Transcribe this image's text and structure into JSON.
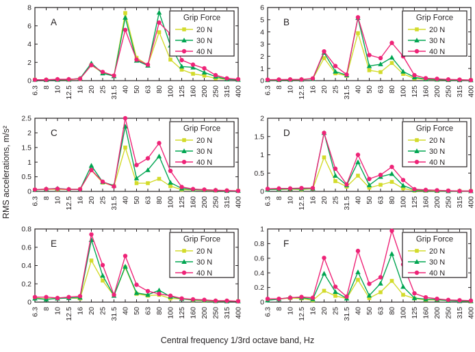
{
  "figure": {
    "xlabel": "Central frequency 1/3rd octave band, Hz",
    "ylabel": "RMS accelerations, m/s²"
  },
  "legend": {
    "title": "Grip Force",
    "position": "top-right",
    "entries": [
      {
        "label": "20 N",
        "color": "#d3db2b",
        "marker": "square"
      },
      {
        "label": "30 N",
        "color": "#00a551",
        "marker": "triangle"
      },
      {
        "label": "40 N",
        "color": "#ee2377",
        "marker": "circle"
      }
    ]
  },
  "chart_data": [
    {
      "type": "line",
      "label": "A",
      "grid": false,
      "categories": [
        "6.3",
        "8",
        "10",
        "12.5",
        "16",
        "20",
        "25",
        "31.5",
        "40",
        "50",
        "63",
        "80",
        "100",
        "125",
        "160",
        "200",
        "250",
        "315",
        "400"
      ],
      "ylim": [
        0,
        8
      ],
      "yticks": [
        0,
        2,
        4,
        6,
        8
      ],
      "series": [
        {
          "name": "20 N",
          "values": [
            0.1,
            0.08,
            0.1,
            0.1,
            0.2,
            1.7,
            0.85,
            0.5,
            7.4,
            2.5,
            1.7,
            5.3,
            2.3,
            1.2,
            0.75,
            0.55,
            0.25,
            0.15,
            0.1
          ]
        },
        {
          "name": "30 N",
          "values": [
            0.1,
            0.08,
            0.1,
            0.12,
            0.25,
            1.9,
            0.8,
            0.5,
            6.9,
            2.2,
            1.65,
            7.45,
            3.85,
            1.55,
            1.45,
            0.9,
            0.45,
            0.15,
            0.1
          ]
        },
        {
          "name": "40 N",
          "values": [
            0.1,
            0.1,
            0.15,
            0.15,
            0.2,
            1.7,
            0.95,
            0.55,
            5.55,
            2.3,
            1.75,
            6.35,
            5.1,
            2.25,
            1.75,
            1.35,
            0.6,
            0.25,
            0.15
          ]
        }
      ]
    },
    {
      "type": "line",
      "label": "B",
      "grid": false,
      "categories": [
        "6.3",
        "8",
        "10",
        "12.5",
        "16",
        "20",
        "25",
        "31.5",
        "40",
        "50",
        "63",
        "80",
        "100",
        "125",
        "160",
        "200",
        "250",
        "315",
        "400"
      ],
      "ylim": [
        0,
        6
      ],
      "yticks": [
        0,
        1,
        2,
        3,
        4,
        5,
        6
      ],
      "series": [
        {
          "name": "20 N",
          "values": [
            0.05,
            0.05,
            0.07,
            0.08,
            0.15,
            1.85,
            0.6,
            0.4,
            3.9,
            0.85,
            0.7,
            1.45,
            0.55,
            0.18,
            0.1,
            0.08,
            0.05,
            0.05,
            0.04
          ]
        },
        {
          "name": "30 N",
          "values": [
            0.05,
            0.06,
            0.08,
            0.09,
            0.15,
            2.3,
            0.75,
            0.45,
            5.15,
            1.2,
            1.35,
            1.9,
            0.75,
            0.28,
            0.12,
            0.1,
            0.06,
            0.05,
            0.04
          ]
        },
        {
          "name": "40 N",
          "values": [
            0.08,
            0.09,
            0.1,
            0.1,
            0.18,
            2.4,
            1.2,
            0.5,
            5.2,
            2.1,
            1.85,
            3.1,
            2.0,
            0.45,
            0.2,
            0.15,
            0.1,
            0.08,
            0.05
          ]
        }
      ]
    },
    {
      "type": "line",
      "label": "C",
      "grid": false,
      "categories": [
        "6.3",
        "8",
        "10",
        "12.5",
        "16",
        "20",
        "25",
        "31.5",
        "40",
        "50",
        "63",
        "80",
        "100",
        "125",
        "160",
        "200",
        "250",
        "315",
        "400"
      ],
      "ylim": [
        0,
        2.5
      ],
      "yticks": [
        0,
        0.5,
        1,
        1.5,
        2,
        2.5
      ],
      "series": [
        {
          "name": "20 N",
          "values": [
            0.05,
            0.07,
            0.07,
            0.06,
            0.07,
            0.72,
            0.3,
            0.18,
            1.5,
            0.28,
            0.28,
            0.43,
            0.18,
            0.06,
            0.05,
            0.04,
            0.03,
            0.02,
            0.02
          ]
        },
        {
          "name": "30 N",
          "values": [
            0.05,
            0.08,
            0.1,
            0.07,
            0.07,
            0.88,
            0.32,
            0.2,
            2.22,
            0.45,
            0.73,
            1.2,
            0.3,
            0.1,
            0.06,
            0.05,
            0.04,
            0.02,
            0.02
          ]
        },
        {
          "name": "40 N",
          "values": [
            0.06,
            0.08,
            0.09,
            0.07,
            0.07,
            0.73,
            0.33,
            0.17,
            2.5,
            0.9,
            1.13,
            1.65,
            0.7,
            0.15,
            0.08,
            0.06,
            0.04,
            0.03,
            0.02
          ]
        }
      ]
    },
    {
      "type": "line",
      "label": "D",
      "grid": false,
      "categories": [
        "6.3",
        "8",
        "10",
        "12.5",
        "16",
        "20",
        "25",
        "31.5",
        "40",
        "50",
        "63",
        "80",
        "100",
        "125",
        "160",
        "200",
        "250",
        "315",
        "400"
      ],
      "ylim": [
        0,
        2
      ],
      "yticks": [
        0,
        0.5,
        1,
        1.5,
        2
      ],
      "series": [
        {
          "name": "20 N",
          "values": [
            0.05,
            0.05,
            0.06,
            0.05,
            0.07,
            0.93,
            0.28,
            0.13,
            0.43,
            0.1,
            0.18,
            0.26,
            0.08,
            0.02,
            0.02,
            0.01,
            0.01,
            0.01,
            0.01
          ]
        },
        {
          "name": "30 N",
          "values": [
            0.05,
            0.06,
            0.07,
            0.07,
            0.08,
            1.6,
            0.43,
            0.17,
            0.8,
            0.17,
            0.4,
            0.48,
            0.16,
            0.04,
            0.03,
            0.02,
            0.01,
            0.01,
            0.01
          ]
        },
        {
          "name": "40 N",
          "values": [
            0.07,
            0.08,
            0.08,
            0.09,
            0.09,
            1.6,
            0.62,
            0.19,
            1.0,
            0.34,
            0.45,
            0.67,
            0.31,
            0.06,
            0.04,
            0.03,
            0.02,
            0.01,
            0.01
          ]
        }
      ]
    },
    {
      "type": "line",
      "label": "E",
      "grid": false,
      "categories": [
        "6.3",
        "8",
        "10",
        "12.5",
        "16",
        "20",
        "25",
        "31.5",
        "40",
        "50",
        "63",
        "80",
        "100",
        "125",
        "160",
        "200",
        "250",
        "315",
        "400"
      ],
      "ylim": [
        0,
        0.8
      ],
      "yticks": [
        0,
        0.2,
        0.4,
        0.6,
        0.8
      ],
      "series": [
        {
          "name": "20 N",
          "values": [
            0.045,
            0.035,
            0.04,
            0.045,
            0.04,
            0.455,
            0.235,
            0.07,
            0.38,
            0.09,
            0.07,
            0.08,
            0.04,
            0.035,
            0.02,
            0.015,
            0.01,
            0.01,
            0.01
          ]
        },
        {
          "name": "30 N",
          "values": [
            0.04,
            0.03,
            0.04,
            0.045,
            0.05,
            0.68,
            0.29,
            0.07,
            0.39,
            0.1,
            0.08,
            0.13,
            0.06,
            0.035,
            0.025,
            0.02,
            0.012,
            0.01,
            0.01
          ]
        },
        {
          "name": "40 N",
          "values": [
            0.055,
            0.055,
            0.045,
            0.055,
            0.065,
            0.74,
            0.405,
            0.08,
            0.505,
            0.19,
            0.12,
            0.09,
            0.07,
            0.04,
            0.03,
            0.025,
            0.015,
            0.015,
            0.01
          ]
        }
      ]
    },
    {
      "type": "line",
      "label": "F",
      "grid": false,
      "categories": [
        "6.3",
        "8",
        "10",
        "12.5",
        "16",
        "20",
        "25",
        "31.5",
        "40",
        "50",
        "63",
        "80",
        "100",
        "125",
        "160",
        "200",
        "250",
        "315",
        "400"
      ],
      "ylim": [
        0,
        1
      ],
      "yticks": [
        0,
        0.2,
        0.4,
        0.6,
        0.8,
        1
      ],
      "series": [
        {
          "name": "20 N",
          "values": [
            0.03,
            0.04,
            0.055,
            0.05,
            0.025,
            0.155,
            0.085,
            0.05,
            0.305,
            0.055,
            0.135,
            0.29,
            0.1,
            0.05,
            0.03,
            0.03,
            0.02,
            0.015,
            0.01
          ]
        },
        {
          "name": "30 N",
          "values": [
            0.025,
            0.04,
            0.065,
            0.06,
            0.04,
            0.39,
            0.14,
            0.05,
            0.41,
            0.09,
            0.255,
            0.66,
            0.21,
            0.055,
            0.04,
            0.035,
            0.02,
            0.015,
            0.015
          ]
        },
        {
          "name": "40 N",
          "values": [
            0.045,
            0.045,
            0.06,
            0.07,
            0.06,
            0.605,
            0.21,
            0.075,
            0.7,
            0.25,
            0.34,
            0.975,
            0.515,
            0.12,
            0.065,
            0.045,
            0.03,
            0.025,
            0.02
          ]
        }
      ]
    }
  ]
}
